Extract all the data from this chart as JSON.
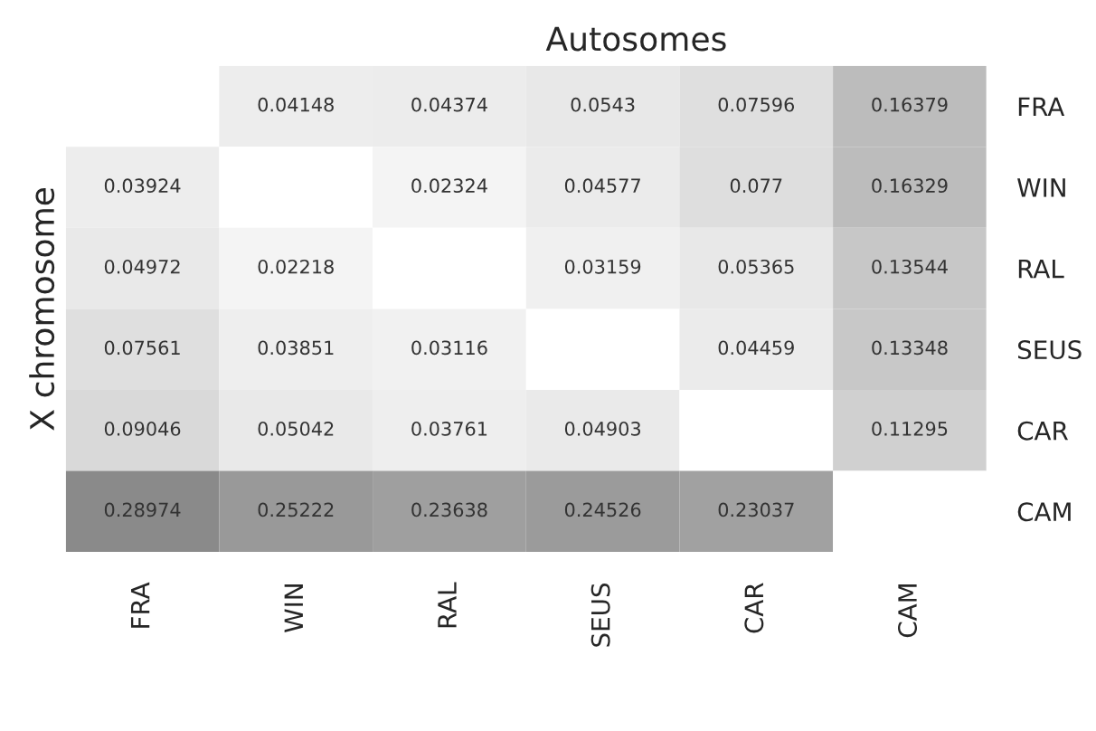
{
  "chart_data": {
    "type": "heatmap",
    "title": "Autosomes",
    "ylabel": "X chromosome",
    "categories": [
      "FRA",
      "WIN",
      "RAL",
      "SEUS",
      "CAR",
      "CAM"
    ],
    "y_categories": [
      "FRA",
      "WIN",
      "RAL",
      "SEUS",
      "CAR",
      "CAM"
    ],
    "cells": [
      [
        null,
        0.04148,
        0.04374,
        0.0543,
        0.07596,
        0.16379
      ],
      [
        0.03924,
        null,
        0.02324,
        0.04577,
        0.077,
        0.16329
      ],
      [
        0.04972,
        0.02218,
        null,
        0.03159,
        0.05365,
        0.13544
      ],
      [
        0.07561,
        0.03851,
        0.03116,
        null,
        0.04459,
        0.13348
      ],
      [
        0.09046,
        0.05042,
        0.03761,
        0.04903,
        null,
        0.11295
      ],
      [
        0.28974,
        0.25222,
        0.23638,
        0.24526,
        0.23037,
        null
      ]
    ],
    "data_labels": true
  }
}
